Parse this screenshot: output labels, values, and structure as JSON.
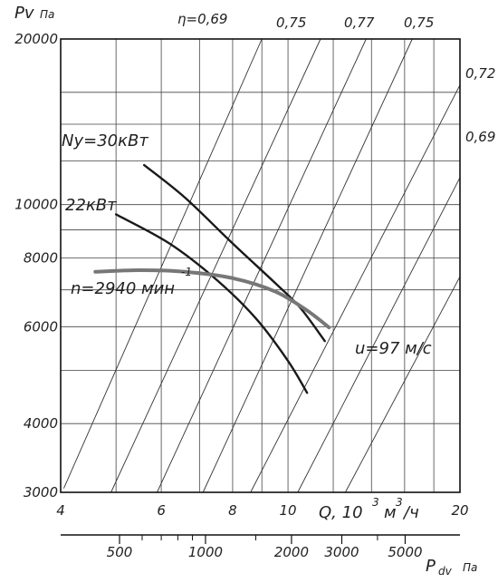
{
  "chart_data": {
    "type": "line",
    "y_axis": {
      "label": "Pv",
      "unit": "Па",
      "scale": "log",
      "range": [
        3000,
        20000
      ],
      "ticks": [
        3000,
        4000,
        6000,
        8000,
        10000,
        20000
      ],
      "tick_labels": [
        "3000",
        "4000",
        "6000",
        "8000",
        "10000",
        "20000"
      ]
    },
    "x_axis": {
      "label": "Q, 10",
      "label_exp": "3",
      "unit": "м",
      "unit_exp": "3",
      "unit_tail": "/ч",
      "scale": "log",
      "range": [
        4,
        20
      ],
      "ticks": [
        4,
        6,
        8,
        10,
        20
      ],
      "tick_labels": [
        "4",
        "6",
        "8",
        "10",
        "20"
      ]
    },
    "secondary_x_axis": {
      "label": "P",
      "label_sub": "dv",
      "unit": "Па",
      "ticks": [
        500,
        1000,
        2000,
        3000,
        5000
      ],
      "tick_labels": [
        "500",
        "1000",
        "2000",
        "3000",
        "5000"
      ]
    },
    "grid": true,
    "efficiency_lines": [
      {
        "label": "η=0,69",
        "label_pos": "top"
      },
      {
        "label": "0,75",
        "label_pos": "top"
      },
      {
        "label": "0,77",
        "label_pos": "top"
      },
      {
        "label": "0,75",
        "label_pos": "top"
      },
      {
        "label": "0,72",
        "label_pos": "right"
      },
      {
        "label": "0,69",
        "label_pos": "right"
      }
    ],
    "series": [
      {
        "name": "Ny=30кВт",
        "color": "#1a1a1a",
        "points": [
          [
            5.6,
            11800
          ],
          [
            6.6,
            10300
          ],
          [
            8.0,
            8500
          ],
          [
            9.5,
            7200
          ],
          [
            10.5,
            6500
          ],
          [
            11.6,
            5650
          ]
        ]
      },
      {
        "name": "22кВт",
        "color": "#1a1a1a",
        "points": [
          [
            5.0,
            9600
          ],
          [
            6.2,
            8500
          ],
          [
            7.5,
            7300
          ],
          [
            8.8,
            6200
          ],
          [
            10.0,
            5200
          ],
          [
            10.8,
            4550
          ]
        ]
      },
      {
        "name": "n=2940 мин",
        "name_exp": "-1",
        "color": "#777777",
        "points": [
          [
            4.6,
            7550
          ],
          [
            5.5,
            7600
          ],
          [
            6.6,
            7550
          ],
          [
            8.0,
            7350
          ],
          [
            9.5,
            6950
          ],
          [
            10.8,
            6420
          ],
          [
            11.8,
            5980
          ]
        ]
      }
    ],
    "annotations": [
      {
        "text": "u=97 м/с"
      }
    ]
  }
}
